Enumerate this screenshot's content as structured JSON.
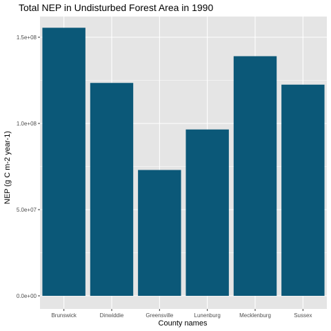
{
  "chart_data": {
    "type": "bar",
    "title": "Total NEP in Undisturbed Forest Area in 1990",
    "xlabel": "County names",
    "ylabel": "NEP (g C m-2 year-1)",
    "categories": [
      "Brunswick",
      "Dinwiddie",
      "Greensville",
      "Lunenburg",
      "Mecklenburg",
      "Sussex"
    ],
    "values": [
      155500000,
      123500000,
      73000000,
      96500000,
      139000000,
      122500000
    ],
    "ylim": [
      0,
      162000000
    ],
    "yticks": [
      0,
      50000000,
      100000000,
      150000000
    ],
    "ytick_labels": [
      "0.0e+00",
      "5.0e+07",
      "1.0e+08",
      "1.5e+08"
    ],
    "bar_color": "#0b5878",
    "panel_background": "#e5e5e5",
    "grid": true,
    "legend": "none"
  }
}
